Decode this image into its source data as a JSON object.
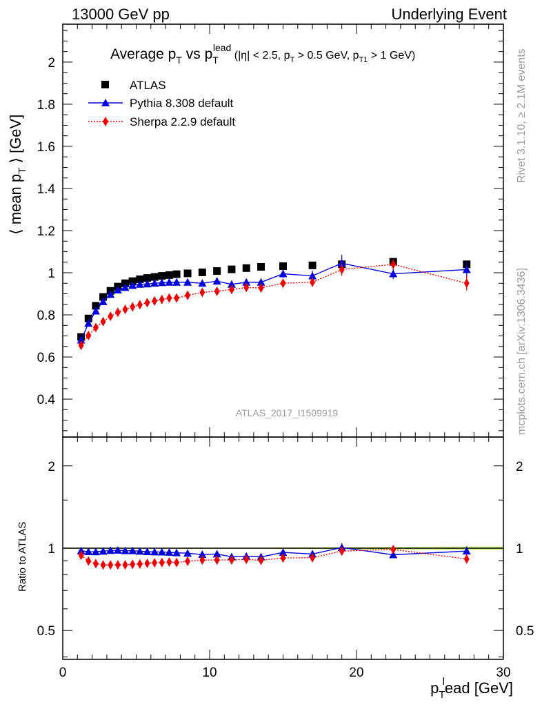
{
  "header": {
    "left": "13000 GeV pp",
    "right": "Underlying Event"
  },
  "side_labels": {
    "rivet": "Rivet 3.1.10, ≥ 2.1M events",
    "mcplots": "mcplots.cern.ch [arXiv:1306.3436]"
  },
  "analysis_id": "ATLAS_2017_I1509919",
  "colors": {
    "atlas": "#000000",
    "pythia": "#0000dd",
    "sherpa": "#ee0000",
    "band": "#ccf07a"
  },
  "chart_data": [
    {
      "type": "scatter",
      "panel": "main",
      "title": {
        "t1": "Average p",
        "t1sub": "T",
        "t2": " vs p",
        "t2sub": "T",
        "t2sup": "lead",
        "cond": " (|η| < 2.5, p",
        "cond_sub1": "T",
        "cond2": " > 0.5 GeV, p",
        "cond_sub2": "T1",
        "cond3": " > 1 GeV)"
      },
      "ylabel": {
        "a": "⟨ mean p",
        "sub": "T",
        "b": " ⟩ [GeV]"
      },
      "xlim": [
        0,
        30
      ],
      "ylim": [
        0.22,
        2.18
      ],
      "yticks": [
        0.4,
        0.6,
        0.8,
        1,
        1.2,
        1.4,
        1.6,
        1.8,
        2
      ],
      "ytick_labels": [
        "0.4",
        "0.6",
        "0.8",
        "1",
        "1.2",
        "1.4",
        "1.6",
        "1.8",
        "2"
      ],
      "legend_position": "top-left",
      "series": [
        {
          "name": "ATLAS",
          "marker": "square",
          "x": [
            1.25,
            1.75,
            2.25,
            2.75,
            3.25,
            3.75,
            4.25,
            4.75,
            5.25,
            5.75,
            6.25,
            6.75,
            7.25,
            7.75,
            8.5,
            9.5,
            10.5,
            11.5,
            12.5,
            13.5,
            15,
            17,
            19,
            22.5,
            27.5
          ],
          "y": [
            0.695,
            0.783,
            0.843,
            0.885,
            0.914,
            0.934,
            0.95,
            0.96,
            0.969,
            0.975,
            0.98,
            0.985,
            0.989,
            0.993,
            0.997,
            1.002,
            1.008,
            1.016,
            1.022,
            1.028,
            1.031,
            1.035,
            1.04,
            1.052,
            1.04
          ],
          "yerr": [
            0.004,
            0.004,
            0.004,
            0.004,
            0.004,
            0.004,
            0.004,
            0.004,
            0.004,
            0.004,
            0.004,
            0.004,
            0.004,
            0.004,
            0.005,
            0.005,
            0.005,
            0.006,
            0.006,
            0.006,
            0.007,
            0.008,
            0.01,
            0.012,
            0.015
          ]
        },
        {
          "name": "Pythia 8.308 default",
          "marker": "triangle",
          "line": "solid",
          "x": [
            1.25,
            1.75,
            2.25,
            2.75,
            3.25,
            3.75,
            4.25,
            4.75,
            5.25,
            5.75,
            6.25,
            6.75,
            7.25,
            7.75,
            8.5,
            9.5,
            10.5,
            11.5,
            12.5,
            13.5,
            15,
            17,
            19,
            22.5,
            27.5
          ],
          "y": [
            0.68,
            0.76,
            0.818,
            0.863,
            0.897,
            0.918,
            0.93,
            0.94,
            0.945,
            0.947,
            0.95,
            0.953,
            0.955,
            0.955,
            0.955,
            0.95,
            0.96,
            0.945,
            0.955,
            0.955,
            0.995,
            0.985,
            1.045,
            0.995,
            1.015
          ],
          "yerr": [
            0.005,
            0.005,
            0.005,
            0.005,
            0.006,
            0.006,
            0.006,
            0.007,
            0.007,
            0.007,
            0.008,
            0.008,
            0.009,
            0.009,
            0.01,
            0.012,
            0.013,
            0.015,
            0.016,
            0.018,
            0.02,
            0.025,
            0.04,
            0.025,
            0.04
          ]
        },
        {
          "name": "Sherpa 2.2.9 default",
          "marker": "diamond",
          "line": "dotted",
          "x": [
            1.25,
            1.75,
            2.25,
            2.75,
            3.25,
            3.75,
            4.25,
            4.75,
            5.25,
            5.75,
            6.25,
            6.75,
            7.25,
            7.75,
            8.5,
            9.5,
            10.5,
            11.5,
            12.5,
            13.5,
            15,
            17,
            19,
            22.5,
            27.5
          ],
          "y": [
            0.655,
            0.702,
            0.74,
            0.768,
            0.793,
            0.812,
            0.826,
            0.838,
            0.848,
            0.858,
            0.866,
            0.873,
            0.88,
            0.88,
            0.893,
            0.907,
            0.912,
            0.92,
            0.93,
            0.928,
            0.95,
            0.955,
            1.015,
            1.04,
            0.95
          ],
          "yerr": [
            0.005,
            0.005,
            0.005,
            0.005,
            0.006,
            0.006,
            0.006,
            0.007,
            0.007,
            0.007,
            0.008,
            0.008,
            0.009,
            0.009,
            0.01,
            0.012,
            0.013,
            0.015,
            0.016,
            0.018,
            0.02,
            0.022,
            0.03,
            0.025,
            0.035
          ]
        }
      ]
    },
    {
      "type": "scatter",
      "panel": "ratio",
      "ylabel": "Ratio to ATLAS",
      "xlabel": {
        "a": "p",
        "sub": "T",
        "sup": "l",
        "b": "ead [GeV]"
      },
      "xlim": [
        0,
        30
      ],
      "xticks": [
        0,
        10,
        20,
        30
      ],
      "xtick_labels": [
        "0",
        "10",
        "20",
        "30"
      ],
      "ylim": [
        0.392,
        2.55
      ],
      "yscale": "log",
      "yticks": [
        0.5,
        1,
        2
      ],
      "ytick_labels": [
        "0.5",
        "1",
        "2"
      ],
      "reference": 1,
      "series": [
        {
          "name": "Pythia 8.308 default",
          "x": [
            1.25,
            1.75,
            2.25,
            2.75,
            3.25,
            3.75,
            4.25,
            4.75,
            5.25,
            5.75,
            6.25,
            6.75,
            7.25,
            7.75,
            8.5,
            9.5,
            10.5,
            11.5,
            12.5,
            13.5,
            15,
            17,
            19,
            22.5,
            27.5
          ],
          "y": [
            0.978,
            0.971,
            0.97,
            0.975,
            0.981,
            0.983,
            0.979,
            0.979,
            0.975,
            0.971,
            0.969,
            0.968,
            0.966,
            0.962,
            0.958,
            0.948,
            0.952,
            0.93,
            0.934,
            0.929,
            0.965,
            0.952,
            1.005,
            0.946,
            0.976
          ],
          "yerr": [
            0.006,
            0.006,
            0.006,
            0.006,
            0.007,
            0.007,
            0.007,
            0.008,
            0.008,
            0.008,
            0.009,
            0.009,
            0.01,
            0.01,
            0.011,
            0.013,
            0.014,
            0.016,
            0.017,
            0.019,
            0.021,
            0.026,
            0.04,
            0.025,
            0.04
          ]
        },
        {
          "name": "Sherpa 2.2.9 default",
          "x": [
            1.25,
            1.75,
            2.25,
            2.75,
            3.25,
            3.75,
            4.25,
            4.75,
            5.25,
            5.75,
            6.25,
            6.75,
            7.25,
            7.75,
            8.5,
            9.5,
            10.5,
            11.5,
            12.5,
            13.5,
            15,
            17,
            19,
            22.5,
            27.5
          ],
          "y": [
            0.942,
            0.897,
            0.878,
            0.868,
            0.868,
            0.869,
            0.869,
            0.873,
            0.875,
            0.88,
            0.884,
            0.886,
            0.89,
            0.886,
            0.896,
            0.905,
            0.905,
            0.906,
            0.91,
            0.903,
            0.921,
            0.923,
            0.976,
            0.989,
            0.913
          ],
          "yerr": [
            0.006,
            0.006,
            0.006,
            0.006,
            0.007,
            0.007,
            0.007,
            0.008,
            0.008,
            0.008,
            0.009,
            0.009,
            0.01,
            0.01,
            0.011,
            0.013,
            0.014,
            0.016,
            0.017,
            0.019,
            0.021,
            0.023,
            0.03,
            0.025,
            0.035
          ]
        }
      ]
    }
  ]
}
